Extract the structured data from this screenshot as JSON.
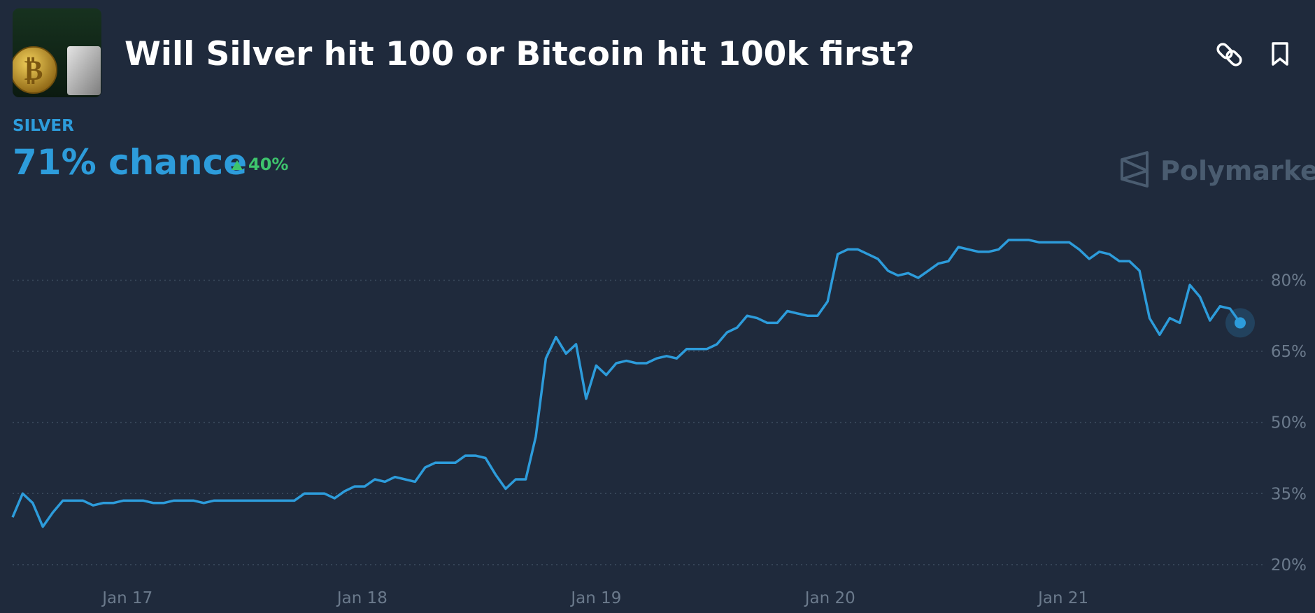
{
  "chart_data": {
    "type": "line",
    "title": "Will Silver hit 100 or Bitcoin hit 100k first?",
    "subtitle": "SILVER",
    "headline": "71% chance",
    "change": "40%",
    "brand": "Polymarket",
    "series": [
      {
        "name": "SILVER",
        "color": "#2d9cdb",
        "values": [
          30,
          35,
          33,
          28,
          31,
          33.5,
          33.5,
          33.5,
          32.5,
          33,
          33,
          33.5,
          33.5,
          33.5,
          33,
          33,
          33.5,
          33.5,
          33.5,
          33,
          33.5,
          33.5,
          33.5,
          33.5,
          33.5,
          33.5,
          33.5,
          33.5,
          33.5,
          35,
          35,
          35,
          34,
          35.5,
          36.5,
          36.5,
          38,
          37.5,
          38.5,
          38,
          37.5,
          40.5,
          41.5,
          41.5,
          41.5,
          43,
          43,
          42.5,
          39,
          36,
          38,
          38,
          47,
          63.5,
          68,
          64.5,
          66.5,
          55,
          62,
          60,
          62.5,
          63,
          62.5,
          62.5,
          63.5,
          64,
          63.5,
          65.5,
          65.5,
          65.5,
          66.5,
          69,
          70,
          72.5,
          72,
          71,
          71,
          73.5,
          73,
          72.5,
          72.5,
          75.5,
          85.5,
          86.5,
          86.5,
          85.5,
          84.5,
          82,
          81,
          81.5,
          80.5,
          82,
          83.5,
          84,
          87,
          86.5,
          86,
          86,
          86.5,
          88.5,
          88.5,
          88.5,
          88,
          88,
          88,
          88,
          86.5,
          84.5,
          86,
          85.5,
          84,
          84,
          82,
          72,
          68.5,
          72,
          71,
          79,
          76.5,
          71.5,
          74.5,
          74,
          71
        ]
      }
    ],
    "xlim": [
      0,
      122
    ],
    "xticks": [
      {
        "value": 11.42,
        "label": "Jan 17"
      },
      {
        "value": 34.75,
        "label": "Jan 18"
      },
      {
        "value": 58,
        "label": "Jan 19"
      },
      {
        "value": 81.25,
        "label": "Jan 20"
      },
      {
        "value": 104.42,
        "label": "Jan 21"
      }
    ],
    "ylim": [
      16,
      94
    ],
    "yticks": [
      {
        "value": 20,
        "label": "20%"
      },
      {
        "value": 35,
        "label": "35%"
      },
      {
        "value": 50,
        "label": "50%"
      },
      {
        "value": 65,
        "label": "65%"
      },
      {
        "value": 80,
        "label": "80%"
      }
    ],
    "grid": true
  }
}
